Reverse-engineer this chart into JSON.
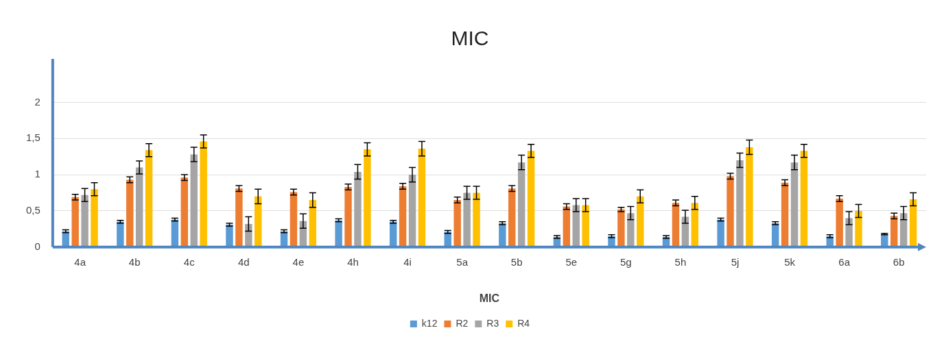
{
  "chart_data": {
    "type": "bar",
    "title": "MIC",
    "xlabel": "MIC",
    "categories": [
      "4a",
      "4b",
      "4c",
      "4d",
      "4e",
      "4h",
      "4i",
      "5a",
      "5b",
      "5e",
      "5g",
      "5h",
      "5j",
      "5k",
      "6a",
      "6b"
    ],
    "series": [
      {
        "name": "k12",
        "color": "#5b9bd5",
        "values": [
          0.22,
          0.35,
          0.38,
          0.31,
          0.22,
          0.37,
          0.35,
          0.21,
          0.33,
          0.14,
          0.15,
          0.14,
          0.38,
          0.33,
          0.15,
          0.18
        ],
        "errors": [
          0.02,
          0.02,
          0.02,
          0.02,
          0.02,
          0.02,
          0.02,
          0.02,
          0.02,
          0.02,
          0.02,
          0.02,
          0.02,
          0.02,
          0.02,
          0.01
        ]
      },
      {
        "name": "R2",
        "color": "#ed7d31",
        "values": [
          0.69,
          0.93,
          0.96,
          0.81,
          0.76,
          0.83,
          0.84,
          0.65,
          0.81,
          0.56,
          0.52,
          0.61,
          0.98,
          0.89,
          0.67,
          0.43
        ],
        "errors": [
          0.04,
          0.04,
          0.04,
          0.04,
          0.04,
          0.04,
          0.04,
          0.04,
          0.04,
          0.04,
          0.03,
          0.04,
          0.04,
          0.04,
          0.04,
          0.04
        ]
      },
      {
        "name": "R3",
        "color": "#a5a5a5",
        "values": [
          0.72,
          1.1,
          1.28,
          0.32,
          0.36,
          1.04,
          1.0,
          0.75,
          1.17,
          0.58,
          0.47,
          0.42,
          1.2,
          1.17,
          0.4,
          0.47
        ],
        "errors": [
          0.09,
          0.09,
          0.1,
          0.1,
          0.1,
          0.1,
          0.1,
          0.09,
          0.1,
          0.09,
          0.09,
          0.09,
          0.1,
          0.1,
          0.09,
          0.09
        ]
      },
      {
        "name": "R4",
        "color": "#ffc000",
        "values": [
          0.8,
          1.34,
          1.46,
          0.7,
          0.65,
          1.35,
          1.36,
          0.75,
          1.33,
          0.58,
          0.7,
          0.61,
          1.38,
          1.33,
          0.5,
          0.66
        ],
        "errors": [
          0.09,
          0.09,
          0.09,
          0.1,
          0.1,
          0.09,
          0.1,
          0.09,
          0.09,
          0.09,
          0.09,
          0.09,
          0.1,
          0.09,
          0.09,
          0.09
        ]
      }
    ],
    "ylim": [
      0,
      2.6
    ],
    "yticks": [
      0,
      {
        "value": 0.5,
        "label": "0,5"
      },
      1,
      {
        "value": 1.5,
        "label": "1,5"
      },
      2
    ],
    "grid": "y",
    "legend": "bottom"
  }
}
